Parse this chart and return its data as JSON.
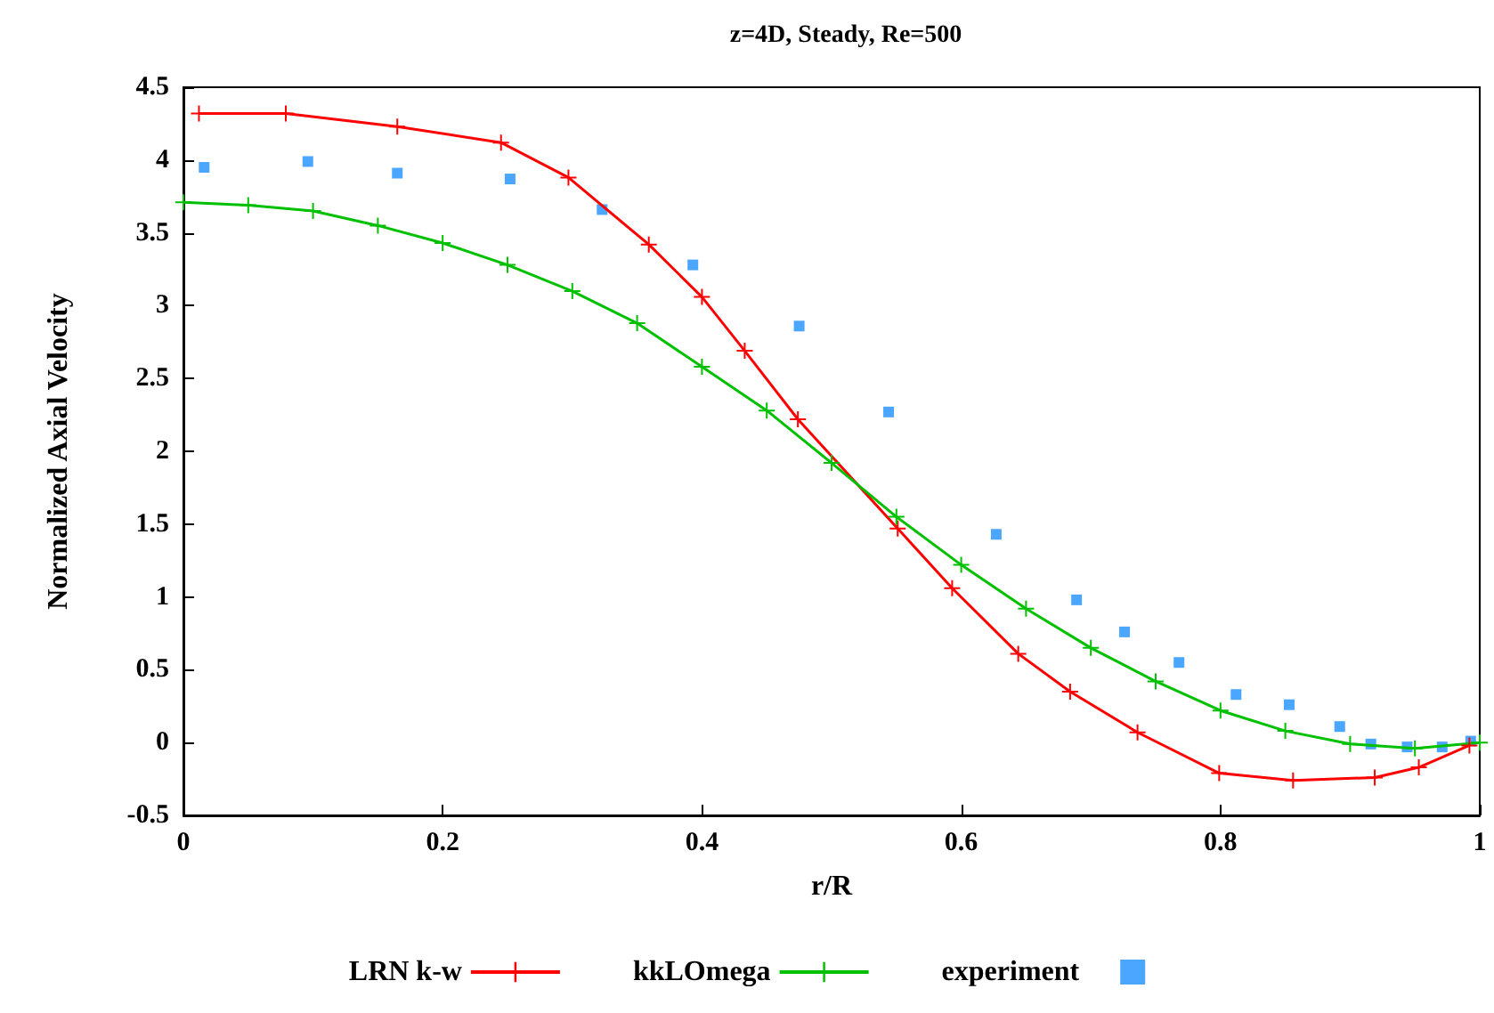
{
  "chart_data": {
    "type": "line",
    "title": "z=4D, Steady, Re=500",
    "xlabel": "r/R",
    "ylabel": "Normalized Axial Velocity",
    "xlim": [
      0,
      1
    ],
    "xticks": [
      0,
      0.2,
      0.4,
      0.6,
      0.8,
      1
    ],
    "ylim": [
      -0.5,
      4.5
    ],
    "yticks": [
      -0.5,
      0,
      0.5,
      1,
      1.5,
      2,
      2.5,
      3,
      3.5,
      4,
      4.5
    ],
    "grid": false,
    "legend": "bottom",
    "series": [
      {
        "name": "LRN k-w",
        "color": "#ff0000",
        "marker": "cross",
        "x": [
          0.012,
          0.079,
          0.165,
          0.245,
          0.297,
          0.359,
          0.4,
          0.433,
          0.474,
          0.551,
          0.593,
          0.644,
          0.684,
          0.736,
          0.799,
          0.856,
          0.919,
          0.953,
          0.992
        ],
        "values": [
          4.32,
          4.32,
          4.23,
          4.12,
          3.88,
          3.42,
          3.06,
          2.69,
          2.22,
          1.47,
          1.06,
          0.61,
          0.35,
          0.07,
          -0.21,
          -0.26,
          -0.24,
          -0.17,
          -0.02
        ]
      },
      {
        "name": "kkLOmega",
        "color": "#00c000",
        "marker": "cross",
        "x": [
          0,
          0.05,
          0.1,
          0.15,
          0.2,
          0.25,
          0.3,
          0.35,
          0.4,
          0.45,
          0.5,
          0.55,
          0.6,
          0.65,
          0.7,
          0.75,
          0.8,
          0.85,
          0.9,
          0.95,
          1
        ],
        "values": [
          3.71,
          3.69,
          3.65,
          3.55,
          3.43,
          3.28,
          3.1,
          2.88,
          2.58,
          2.28,
          1.92,
          1.55,
          1.22,
          0.92,
          0.65,
          0.42,
          0.22,
          0.08,
          -0.01,
          -0.04,
          0
        ]
      },
      {
        "name": "experiment",
        "type": "scatter",
        "color": "#1e90ff",
        "marker": "square",
        "x": [
          0.016,
          0.096,
          0.165,
          0.252,
          0.323,
          0.393,
          0.475,
          0.544,
          0.627,
          0.689,
          0.726,
          0.768,
          0.812,
          0.853,
          0.892,
          0.916,
          0.944,
          0.971,
          0.993
        ],
        "values": [
          3.95,
          3.99,
          3.91,
          3.87,
          3.66,
          3.28,
          2.86,
          2.27,
          1.43,
          0.98,
          0.76,
          0.55,
          0.33,
          0.26,
          0.11,
          -0.01,
          -0.03,
          -0.03,
          0.01
        ]
      }
    ]
  }
}
